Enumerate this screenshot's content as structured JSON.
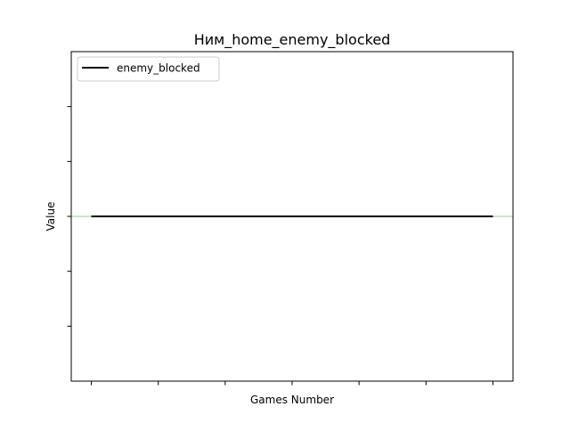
{
  "chart_data": {
    "type": "line",
    "title": "Ним_home_enemy_blocked",
    "xlabel": "Games Number",
    "ylabel": "Value",
    "x_tick_count": 7,
    "y_tick_count": 5,
    "x_tick_labels_shown": false,
    "y_tick_labels_shown": false,
    "grid": false,
    "legend": {
      "placement": "upper-left",
      "entries": [
        "enemy_blocked"
      ]
    },
    "xlim": [
      -0.3,
      6.3
    ],
    "ylim": [
      -3,
      3
    ],
    "reference_line": {
      "y": 0,
      "color": "#c8e6c9"
    },
    "series": [
      {
        "name": "enemy_blocked",
        "color": "#000000",
        "x": [
          0,
          1,
          2,
          3,
          4,
          5,
          6
        ],
        "y": [
          0,
          0,
          0,
          0,
          0,
          0,
          0
        ]
      }
    ]
  }
}
